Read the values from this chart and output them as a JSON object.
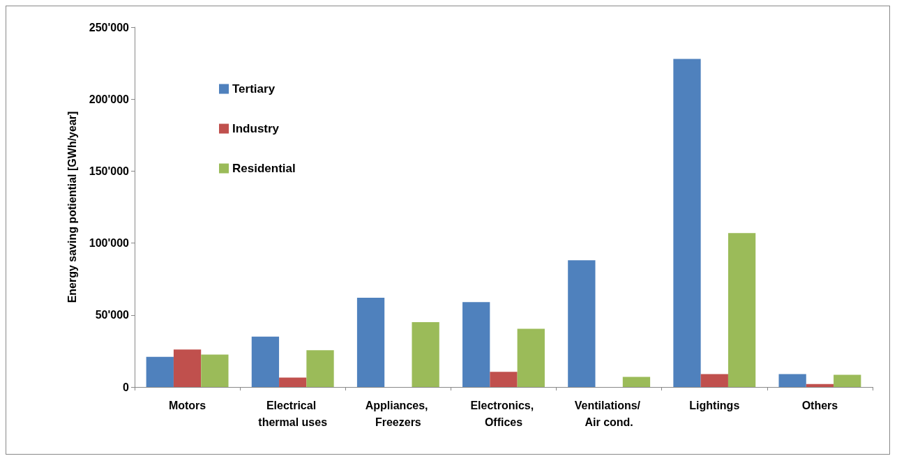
{
  "chart_data": {
    "type": "bar",
    "ylabel": "Energy saving potiential [GWh/year]",
    "categories": [
      "Motors",
      "Electrical thermal uses",
      "Appliances, Freezers",
      "Electronics, Offices",
      "Ventilations/ Air cond.",
      "Lightings",
      "Others"
    ],
    "series": [
      {
        "name": "Tertiary",
        "color": "#4f81bd",
        "values": [
          21000,
          35000,
          62000,
          59000,
          88000,
          228000,
          9000
        ]
      },
      {
        "name": "Industry",
        "color": "#c0504d",
        "values": [
          26000,
          6500,
          null,
          10500,
          null,
          9000,
          2000
        ]
      },
      {
        "name": "Residential",
        "color": "#9bbb59",
        "values": [
          22500,
          25500,
          45000,
          40500,
          7000,
          107000,
          8500
        ]
      }
    ],
    "ylim": [
      0,
      250000
    ],
    "yticks": [
      {
        "value": 0,
        "label": "0"
      },
      {
        "value": 50000,
        "label": "50'000"
      },
      {
        "value": 100000,
        "label": "100'000"
      },
      {
        "value": 150000,
        "label": "150'000"
      },
      {
        "value": 200000,
        "label": "200'000"
      },
      {
        "value": 250000,
        "label": "250'000"
      }
    ],
    "grid": false,
    "legend": "top left"
  }
}
